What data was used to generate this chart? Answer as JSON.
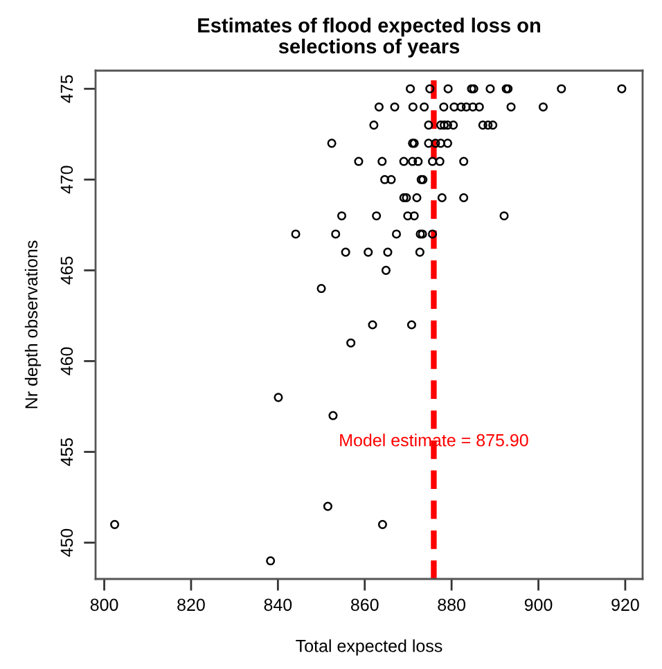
{
  "chart_data": {
    "type": "scatter",
    "title": "Estimates of flood expected loss on\nselections of years",
    "xlabel": "Total expected loss",
    "ylabel": "Nr depth observations",
    "marker": "circle",
    "xlim": [
      798,
      924
    ],
    "ylim": [
      448,
      476
    ],
    "xticks": [
      800,
      820,
      840,
      860,
      880,
      900,
      920
    ],
    "yticks": [
      450,
      455,
      460,
      465,
      470,
      475
    ],
    "series": [
      {
        "color": "#000000",
        "x": [
          870.5,
          875.0,
          879.2,
          884.6,
          885.1,
          888.9,
          892.6,
          893.0,
          905.3,
          919.2,
          863.3,
          866.9,
          871.1,
          873.7,
          878.2,
          880.6,
          882.2,
          883.4,
          884.9,
          886.4,
          893.7,
          901.1,
          862.1,
          874.7,
          877.5,
          878.3,
          879.1,
          880.4,
          887.2,
          888.4,
          889.5,
          852.4,
          871.0,
          871.4,
          874.7,
          876.3,
          877.5,
          879.1,
          858.6,
          864.0,
          869.0,
          871.0,
          872.3,
          875.6,
          877.3,
          882.8,
          864.6,
          866.1,
          873.0,
          873.4,
          869.0,
          869.6,
          872.0,
          877.8,
          882.8,
          854.7,
          862.7,
          869.9,
          871.4,
          892.1,
          844.1,
          853.3,
          867.3,
          872.8,
          873.3,
          875.6,
          855.6,
          860.8,
          865.3,
          872.7,
          864.9,
          850.0,
          861.8,
          870.8,
          856.8,
          840.1,
          852.7,
          851.5,
          802.4,
          864.1,
          838.3
        ],
        "values": [
          475,
          475,
          475,
          475,
          475,
          475,
          475,
          475,
          475,
          475,
          474,
          474,
          474,
          474,
          474,
          474,
          474,
          474,
          474,
          474,
          474,
          474,
          473,
          473,
          473,
          473,
          473,
          473,
          473,
          473,
          473,
          472,
          472,
          472,
          472,
          472,
          472,
          472,
          471,
          471,
          471,
          471,
          471,
          471,
          471,
          471,
          470,
          470,
          470,
          470,
          469,
          469,
          469,
          469,
          469,
          468,
          468,
          468,
          468,
          468,
          467,
          467,
          467,
          467,
          467,
          467,
          466,
          466,
          466,
          466,
          465,
          464,
          462,
          462,
          461,
          458,
          457,
          452,
          451,
          451,
          449
        ]
      }
    ],
    "ref_lines": [
      {
        "axis": "x",
        "value": 875.9,
        "label": "Model estimate = 875.90",
        "color": "#ff0000",
        "line_style": "dashed"
      }
    ]
  }
}
